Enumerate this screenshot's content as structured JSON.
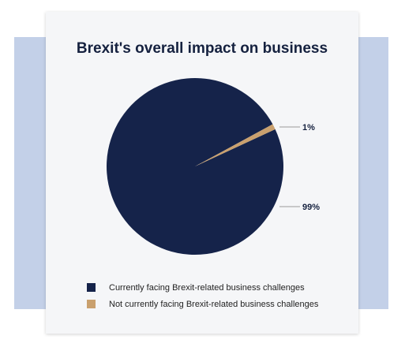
{
  "chart_data": {
    "type": "pie",
    "title": "Brexit's overall impact on business",
    "slices": [
      {
        "label": "Currently facing Brexit-related business challenges",
        "value": 99,
        "display": "99%",
        "color": "#15234a"
      },
      {
        "label": "Not currently facing Brexit-related business challenges",
        "value": 1,
        "display": "1%",
        "color": "#c9a06e"
      }
    ],
    "legend_position": "bottom-left"
  },
  "colors": {
    "title": "#15213f",
    "card_background": "#f5f6f8",
    "backdrop": "#c3d0e8"
  }
}
